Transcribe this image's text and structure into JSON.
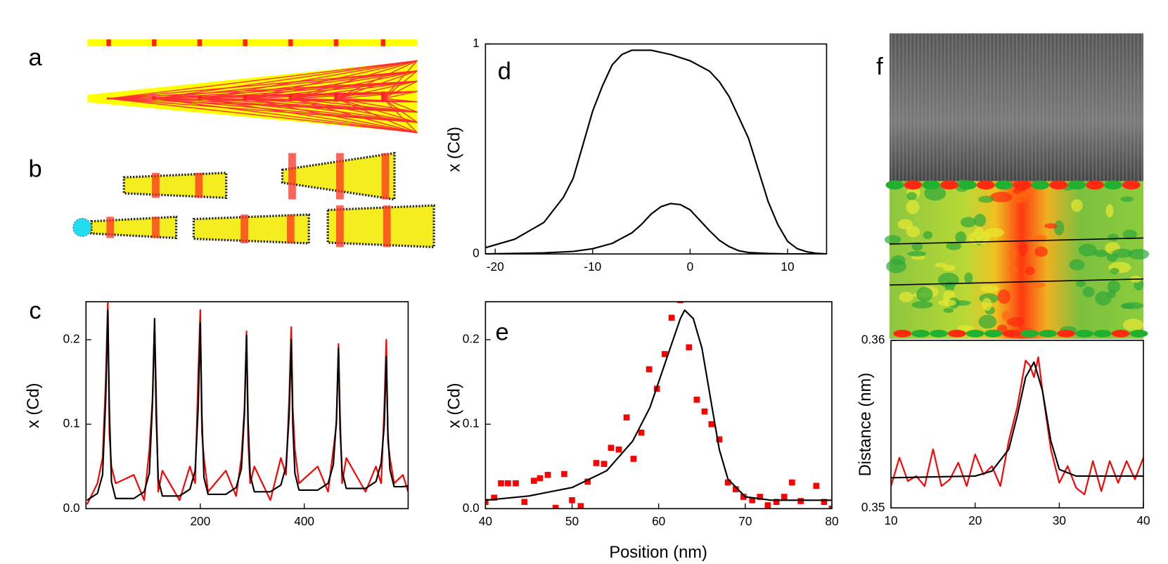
{
  "panel_labels": [
    "a",
    "b",
    "c",
    "d",
    "e",
    "f"
  ],
  "chart_data": [
    {
      "type": "line",
      "ylabel": "x (Cd)",
      "xlim": [
        -20,
        600
      ],
      "xticks": [
        200,
        400
      ],
      "ylim": [
        0,
        0.245
      ],
      "yticks": [
        {
          "value": 0,
          "label": "0.0"
        },
        0.1,
        0.2
      ],
      "x": [
        -18,
        2,
        12,
        18,
        22,
        25,
        29,
        37,
        72,
        92,
        102,
        108,
        112,
        115,
        119,
        127,
        160,
        180,
        190,
        196,
        200,
        203,
        207,
        215,
        249,
        269,
        279,
        285,
        289,
        292,
        296,
        304,
        335,
        355,
        365,
        371,
        375,
        378,
        382,
        390,
        426,
        446,
        456,
        462,
        466,
        469,
        473,
        481,
        518,
        538,
        548,
        554,
        558,
        561,
        565,
        573,
        590,
        600
      ],
      "series": [
        {
          "color": "#ff0000",
          "values": [
            0.005,
            0.03,
            0.06,
            0.15,
            0.245,
            0.09,
            0.05,
            0.03,
            0.04,
            0.01,
            0.07,
            0.13,
            0.222,
            0.14,
            0.02,
            0.045,
            0.01,
            0.05,
            0.03,
            0.16,
            0.235,
            0.09,
            0.06,
            0.02,
            0.045,
            0.015,
            0.06,
            0.12,
            0.21,
            0.08,
            0.03,
            0.05,
            0.01,
            0.06,
            0.04,
            0.13,
            0.215,
            0.12,
            0.07,
            0.03,
            0.05,
            0.02,
            0.07,
            0.1,
            0.195,
            0.11,
            0.03,
            0.06,
            0.02,
            0.05,
            0.03,
            0.12,
            0.2,
            0.08,
            0.06,
            0.03,
            0.04,
            0.02
          ]
        },
        {
          "color": "#000000",
          "values": [
            0.01,
            0.018,
            0.04,
            0.129,
            0.235,
            0.118,
            0.032,
            0.012,
            0.012,
            0.02,
            0.042,
            0.124,
            0.225,
            0.113,
            0.035,
            0.015,
            0.015,
            0.023,
            0.045,
            0.121,
            0.22,
            0.11,
            0.037,
            0.017,
            0.017,
            0.025,
            0.047,
            0.113,
            0.205,
            0.103,
            0.04,
            0.02,
            0.02,
            0.028,
            0.05,
            0.11,
            0.2,
            0.1,
            0.042,
            0.022,
            0.022,
            0.03,
            0.052,
            0.105,
            0.19,
            0.095,
            0.044,
            0.024,
            0.024,
            0.032,
            0.054,
            0.099,
            0.18,
            0.09,
            0.046,
            0.026,
            0.026,
            0.027
          ]
        }
      ]
    },
    {
      "type": "line",
      "ylabel": "x (Cd)",
      "xlim": [
        -21,
        14
      ],
      "xticks": [
        -20,
        -10,
        0,
        10
      ],
      "ylim": [
        0,
        1
      ],
      "yticks": [
        0,
        1
      ],
      "series": [
        {
          "color": "#000000",
          "x": [
            -21,
            -18,
            -15,
            -13,
            -12,
            -11,
            -10,
            -9,
            -8,
            -7,
            -6,
            -4,
            -2,
            0,
            2,
            3,
            4,
            5,
            6,
            7,
            8,
            9,
            10,
            11,
            12,
            13,
            14
          ],
          "values": [
            0.03,
            0.07,
            0.15,
            0.27,
            0.36,
            0.52,
            0.68,
            0.8,
            0.9,
            0.95,
            0.97,
            0.97,
            0.95,
            0.92,
            0.87,
            0.82,
            0.75,
            0.65,
            0.55,
            0.4,
            0.25,
            0.14,
            0.06,
            0.025,
            0.01,
            0.003,
            0
          ]
        },
        {
          "color": "#000000",
          "x": [
            -21,
            -15,
            -12,
            -10,
            -8,
            -6,
            -5,
            -4,
            -3,
            -2,
            -1,
            0,
            1,
            2,
            3,
            4,
            5,
            6,
            8,
            10,
            14
          ],
          "values": [
            0,
            0.005,
            0.012,
            0.025,
            0.05,
            0.1,
            0.14,
            0.19,
            0.225,
            0.24,
            0.235,
            0.21,
            0.16,
            0.11,
            0.065,
            0.035,
            0.015,
            0.007,
            0.002,
            0,
            0
          ]
        }
      ]
    },
    {
      "type": "line",
      "xlabel": "Position (nm)",
      "ylabel": "x (Cd)",
      "xlim": [
        40,
        80
      ],
      "xticks": [
        40,
        50,
        60,
        70,
        80
      ],
      "ylim": [
        0,
        0.245
      ],
      "yticks": [
        {
          "value": 0,
          "label": "0.0"
        },
        0.1,
        0.2
      ],
      "series": [
        {
          "color": "#ff0000",
          "marker": "square",
          "x": [
            40,
            41,
            41.8,
            42.6,
            43.5,
            44.5,
            45.6,
            46.3,
            47.2,
            48.1,
            49.1,
            50,
            51,
            51.8,
            52.8,
            53.7,
            54.5,
            55.4,
            56.3,
            57.1,
            58,
            58.9,
            59.8,
            60.7,
            61.5,
            62.5,
            63.5,
            64.4,
            65.3,
            66.1,
            67,
            68,
            68.9,
            69.8,
            70.8,
            71.7,
            72.6,
            73.6,
            74.5,
            75.4,
            76.4,
            78.2,
            79.1,
            80
          ],
          "values": [
            0.008,
            0.013,
            0.03,
            0.03,
            0.03,
            0.008,
            0.033,
            0.036,
            0.04,
            0.001,
            0.041,
            0.01,
            0.003,
            0.032,
            0.054,
            0.053,
            0.072,
            0.07,
            0.108,
            0.059,
            0.09,
            0.165,
            0.142,
            0.183,
            0.226,
            0.247,
            0.191,
            0.129,
            0.115,
            0.1,
            0.082,
            0.031,
            0.023,
            0.014,
            0.01,
            0.014,
            0.004,
            0.008,
            0.014,
            0.031,
            0.009,
            0.027,
            0.008,
            0
          ]
        },
        {
          "color": "#000000",
          "x": [
            40,
            45,
            50,
            54,
            57,
            59,
            61,
            62.5,
            63,
            64,
            65,
            66,
            67,
            68,
            70,
            73,
            80
          ],
          "values": [
            0.01,
            0.015,
            0.025,
            0.045,
            0.08,
            0.12,
            0.18,
            0.225,
            0.235,
            0.225,
            0.19,
            0.13,
            0.07,
            0.035,
            0.014,
            0.01,
            0.01
          ]
        }
      ]
    },
    {
      "type": "line",
      "ylabel": "Distance (nm)",
      "xlim": [
        10,
        40
      ],
      "xticks": [
        10,
        20,
        30,
        40
      ],
      "ylim": [
        0.35,
        0.36
      ],
      "yticks": [
        0.35,
        0.36
      ],
      "series": [
        {
          "color": "#ff0000",
          "x": [
            10,
            11,
            12,
            13,
            14,
            15,
            16,
            17,
            18,
            19,
            20,
            21,
            22,
            23,
            24,
            25,
            26,
            26.5,
            27,
            27.5,
            28,
            29,
            30,
            31,
            32,
            33,
            34,
            35,
            36,
            37,
            38,
            39,
            40
          ],
          "values": [
            0.3513,
            0.353,
            0.3516,
            0.3519,
            0.3513,
            0.3535,
            0.3513,
            0.3517,
            0.3527,
            0.3513,
            0.3532,
            0.352,
            0.3525,
            0.3513,
            0.354,
            0.356,
            0.3588,
            0.3585,
            0.3578,
            0.359,
            0.357,
            0.3535,
            0.3515,
            0.3525,
            0.3512,
            0.3508,
            0.3528,
            0.351,
            0.3528,
            0.3515,
            0.3528,
            0.3517,
            0.353
          ]
        },
        {
          "color": "#000000",
          "x": [
            10,
            20,
            22,
            24,
            25,
            26,
            27,
            28,
            29,
            30,
            32,
            40
          ],
          "values": [
            0.3518,
            0.3519,
            0.3522,
            0.3535,
            0.3555,
            0.3578,
            0.3587,
            0.357,
            0.354,
            0.3523,
            0.3519,
            0.3519
          ]
        }
      ]
    }
  ]
}
